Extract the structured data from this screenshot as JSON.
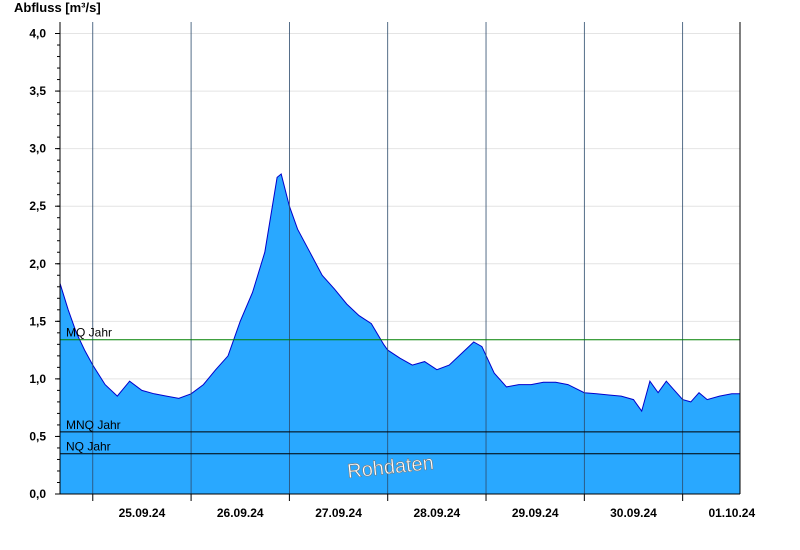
{
  "chart_data": {
    "type": "area",
    "ylabel": "Abfluss [m³/s]",
    "ylim": [
      0,
      4.1
    ],
    "y_ticks": [
      "0,0",
      "0,5",
      "1,0",
      "1,5",
      "2,0",
      "2,5",
      "3,0",
      "3,5",
      "4,0"
    ],
    "y_tick_values": [
      0,
      0.5,
      1.0,
      1.5,
      2.0,
      2.5,
      3.0,
      3.5,
      4.0
    ],
    "x_range": [
      "24.09.24 16:00",
      "01.10.24 14:00"
    ],
    "day_boundaries": [
      "25.09.24",
      "26.09.24",
      "27.09.24",
      "28.09.24",
      "29.09.24",
      "30.09.24",
      "01.10.24"
    ],
    "x_tick_labels": [
      "25.09.24",
      "26.09.24",
      "27.09.24",
      "28.09.24",
      "29.09.24",
      "30.09.24",
      "01.10.24"
    ],
    "grid": true,
    "series": [
      {
        "color": "#29a8ff",
        "line_color": "#0000cc",
        "x": [
          "24.09.24 16:00",
          "24.09.24 18:00",
          "24.09.24 20:00",
          "24.09.24 22:00",
          "25.09.24 00:00",
          "25.09.24 03:00",
          "25.09.24 06:00",
          "25.09.24 09:00",
          "25.09.24 12:00",
          "25.09.24 15:00",
          "25.09.24 18:00",
          "25.09.24 21:00",
          "26.09.24 00:00",
          "26.09.24 03:00",
          "26.09.24 06:00",
          "26.09.24 09:00",
          "26.09.24 12:00",
          "26.09.24 15:00",
          "26.09.24 18:00",
          "26.09.24 21:00",
          "26.09.24 22:00",
          "27.09.24 00:00",
          "27.09.24 02:00",
          "27.09.24 05:00",
          "27.09.24 08:00",
          "27.09.24 11:00",
          "27.09.24 14:00",
          "27.09.24 17:00",
          "27.09.24 20:00",
          "27.09.24 23:00",
          "28.09.24 00:00",
          "28.09.24 03:00",
          "28.09.24 06:00",
          "28.09.24 09:00",
          "28.09.24 12:00",
          "28.09.24 15:00",
          "28.09.24 18:00",
          "28.09.24 21:00",
          "28.09.24 23:00",
          "29.09.24 02:00",
          "29.09.24 05:00",
          "29.09.24 08:00",
          "29.09.24 11:00",
          "29.09.24 14:00",
          "29.09.24 17:00",
          "29.09.24 20:00",
          "30.09.24 00:00",
          "30.09.24 03:00",
          "30.09.24 06:00",
          "30.09.24 09:00",
          "30.09.24 12:00",
          "30.09.24 14:00",
          "30.09.24 16:00",
          "30.09.24 18:00",
          "30.09.24 20:00",
          "30.09.24 22:00",
          "01.10.24 00:00",
          "01.10.24 02:00",
          "01.10.24 04:00",
          "01.10.24 06:00",
          "01.10.24 09:00",
          "01.10.24 12:00",
          "01.10.24 14:00"
        ],
        "y": [
          1.83,
          1.6,
          1.4,
          1.25,
          1.12,
          0.95,
          0.85,
          0.98,
          0.9,
          0.87,
          0.85,
          0.83,
          0.87,
          0.95,
          1.08,
          1.2,
          1.5,
          1.75,
          2.1,
          2.75,
          2.78,
          2.5,
          2.3,
          2.1,
          1.9,
          1.78,
          1.65,
          1.55,
          1.48,
          1.3,
          1.25,
          1.18,
          1.12,
          1.15,
          1.08,
          1.12,
          1.22,
          1.32,
          1.28,
          1.05,
          0.93,
          0.95,
          0.95,
          0.97,
          0.97,
          0.95,
          0.88,
          0.87,
          0.86,
          0.85,
          0.82,
          0.72,
          0.98,
          0.88,
          0.98,
          0.9,
          0.82,
          0.8,
          0.88,
          0.82,
          0.85,
          0.87,
          0.87
        ]
      }
    ],
    "reference_lines": [
      {
        "label": "MQ Jahr",
        "value": 1.34,
        "color": "#008000"
      },
      {
        "label": "MNQ Jahr",
        "value": 0.54,
        "color": "#000000"
      },
      {
        "label": "NQ Jahr",
        "value": 0.35,
        "color": "#000000"
      }
    ]
  },
  "watermark": "Rohdaten"
}
